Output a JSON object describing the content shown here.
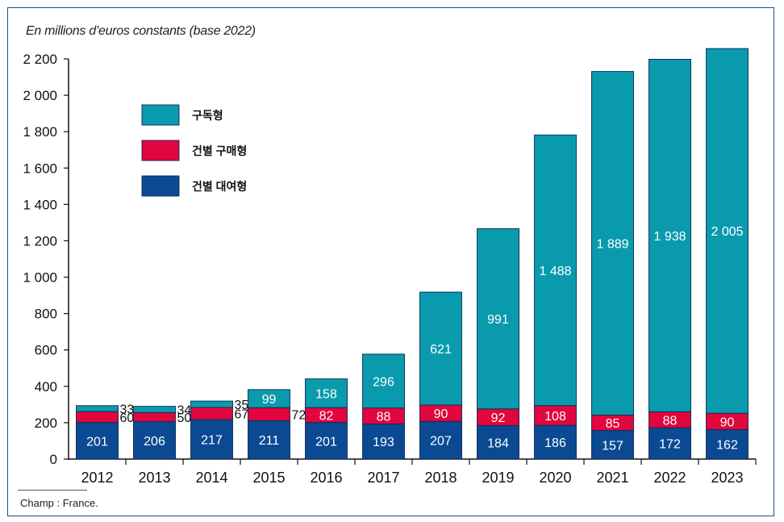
{
  "unit_label": "En millions d’euros constants (base 2022)",
  "source_note": "Champ : France.",
  "colors": {
    "subscription": "#0a9aad",
    "purchase": "#e1063d",
    "rental": "#0b4a93",
    "axis": "#111111",
    "inside_label": "#ffffff",
    "outside_label": "#111111"
  },
  "chart_data": {
    "type": "bar",
    "stacked": true,
    "title": "",
    "xlabel": "",
    "ylabel": "En millions d’euros constants (base 2022)",
    "ylim": [
      0,
      2200
    ],
    "yticks": [
      0,
      200,
      400,
      600,
      800,
      1000,
      1200,
      1400,
      1600,
      1800,
      2000,
      2200
    ],
    "ytick_labels": [
      "0",
      "200",
      "400",
      "600",
      "800",
      "1 000",
      "1 200",
      "1 400",
      "1 600",
      "1 800",
      "2 000",
      "2 200"
    ],
    "grid": false,
    "legend_position": "top-left",
    "categories": [
      "2012",
      "2013",
      "2014",
      "2015",
      "2016",
      "2017",
      "2018",
      "2019",
      "2020",
      "2021",
      "2022",
      "2023"
    ],
    "series": [
      {
        "name": "건별 대여형",
        "color_key": "rental",
        "values": [
          201,
          206,
          217,
          211,
          201,
          193,
          207,
          184,
          186,
          157,
          172,
          162
        ],
        "labels": [
          "201",
          "206",
          "217",
          "211",
          "201",
          "193",
          "207",
          "184",
          "186",
          "157",
          "172",
          "162"
        ]
      },
      {
        "name": "건별 구매형",
        "color_key": "purchase",
        "values": [
          60,
          50,
          67,
          72,
          82,
          88,
          90,
          92,
          108,
          85,
          88,
          90
        ],
        "labels": [
          "60",
          "50",
          "67",
          "72",
          "82",
          "88",
          "90",
          "92",
          "108",
          "85",
          "88",
          "90"
        ]
      },
      {
        "name": "구독형",
        "color_key": "subscription",
        "values": [
          33,
          34,
          35,
          99,
          158,
          296,
          621,
          991,
          1488,
          1889,
          1938,
          2005
        ],
        "labels": [
          "33",
          "34",
          "35",
          "99",
          "158",
          "296",
          "621",
          "991",
          "1 488",
          "1 889",
          "1 938",
          "2 005"
        ]
      }
    ],
    "legend_order": [
      "구독형",
      "건별 구매형",
      "건별 대여형"
    ]
  }
}
